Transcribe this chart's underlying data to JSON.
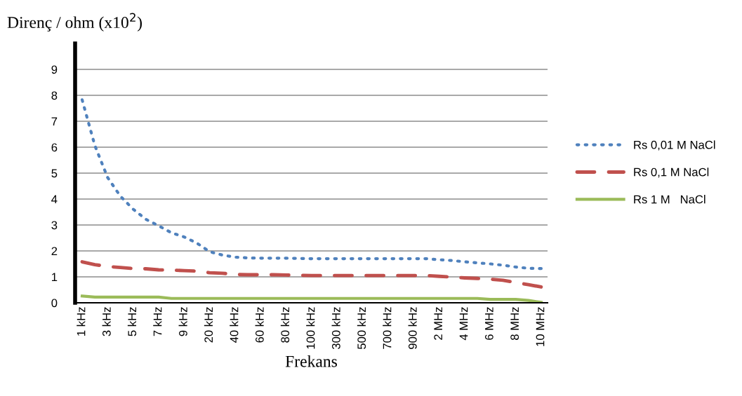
{
  "chart_data": {
    "type": "line",
    "ylabel": "Direnç / ohm (x10$^{2}$)",
    "xlabel": "Frekans",
    "categories": [
      "1 kHz",
      null,
      "3 kHz",
      null,
      "5 kHz",
      null,
      "7 kHz",
      null,
      "9 kHz",
      null,
      "20 kHz",
      null,
      "40 kHz",
      null,
      "60 kHz",
      null,
      "80 kHz",
      null,
      "100 kHz",
      null,
      "300 kHz",
      null,
      "500 kHz",
      null,
      "700 kHz",
      null,
      "900 kHz",
      null,
      "2 MHz",
      null,
      "4 MHz",
      null,
      "6 MHz",
      null,
      "8 MHz",
      null,
      "10 MHz"
    ],
    "series": [
      {
        "name": "Rs 0,01 M NaCl",
        "color": "#4f81bd",
        "line_style": "dotted",
        "values": [
          7.83,
          6.06,
          4.83,
          4.11,
          3.61,
          3.22,
          2.97,
          2.7,
          2.54,
          2.3,
          1.97,
          1.84,
          1.76,
          1.73,
          1.72,
          1.72,
          1.72,
          1.71,
          1.7,
          1.7,
          1.7,
          1.7,
          1.7,
          1.7,
          1.7,
          1.7,
          1.7,
          1.7,
          1.66,
          1.63,
          1.58,
          1.54,
          1.5,
          1.45,
          1.38,
          1.33,
          1.32
        ]
      },
      {
        "name": "Rs 0,1 M NaCl",
        "color": "#c0504d",
        "line_style": "dashed",
        "values": [
          1.58,
          1.47,
          1.4,
          1.36,
          1.32,
          1.31,
          1.27,
          1.26,
          1.24,
          1.22,
          1.16,
          1.14,
          1.09,
          1.08,
          1.08,
          1.08,
          1.07,
          1.06,
          1.05,
          1.05,
          1.05,
          1.05,
          1.05,
          1.05,
          1.05,
          1.05,
          1.05,
          1.05,
          1.02,
          0.99,
          0.96,
          0.94,
          0.91,
          0.87,
          0.78,
          0.7,
          0.61
        ]
      },
      {
        "name": "Rs 1 M   NaCl",
        "color": "#9bbb59",
        "line_style": "solid",
        "values": [
          0.26,
          0.22,
          0.22,
          0.22,
          0.22,
          0.22,
          0.22,
          0.17,
          0.17,
          0.17,
          0.17,
          0.17,
          0.17,
          0.17,
          0.17,
          0.17,
          0.17,
          0.17,
          0.17,
          0.17,
          0.17,
          0.17,
          0.17,
          0.17,
          0.17,
          0.17,
          0.17,
          0.17,
          0.17,
          0.17,
          0.17,
          0.17,
          0.13,
          0.13,
          0.13,
          0.09,
          0.02
        ]
      }
    ],
    "ylim": [
      0,
      10
    ],
    "yticks": [
      0,
      1,
      2,
      3,
      4,
      5,
      6,
      7,
      8,
      9
    ],
    "grid": "y",
    "legend": "right"
  }
}
